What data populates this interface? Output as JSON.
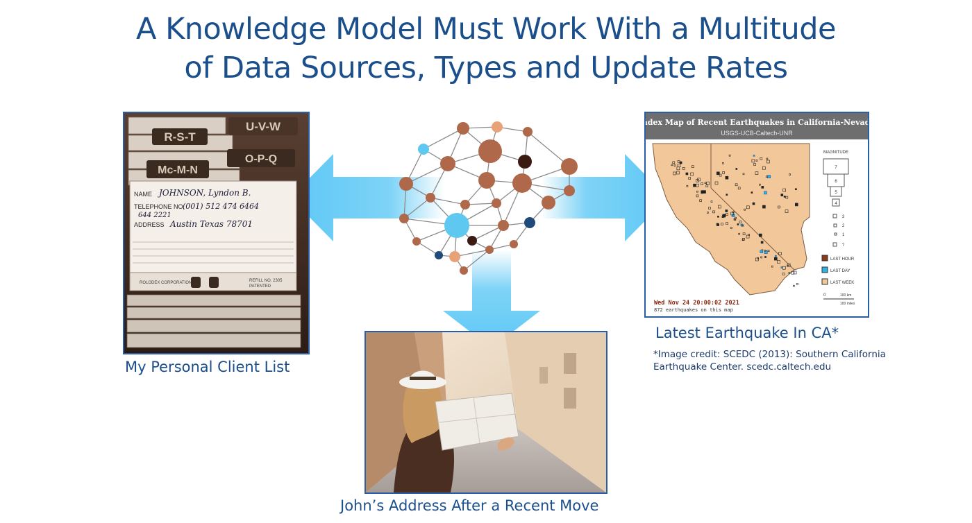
{
  "title": {
    "line1": "A Knowledge Model Must Work With a Multitude",
    "line2": "of Data Sources, Types and Update Rates"
  },
  "client_list": {
    "caption": "My Personal Client List",
    "tabs": [
      "R-S-T",
      "U-V-W",
      "Mc-M-N",
      "O-P-Q"
    ],
    "card": {
      "name_label": "NAME",
      "name_value": "JOHNSON, Lyndon B.",
      "phone_label": "TELEPHONE NO.",
      "phone_value": "(001) 512 474 6464",
      "phone_value2": "644 2221",
      "address_label": "ADDRESS",
      "address_value": "Austin Texas 78701",
      "footer_left": "ROLODEX CORPORATION",
      "footer_right": "REFILL NO. 2305",
      "footer_right2": "PATENTED"
    }
  },
  "address_move": {
    "caption": "John’s Address After a Recent Move"
  },
  "earthquake": {
    "caption": "Latest Earthquake In CA*",
    "credit_line1": "*Image credit: SCEDC (2013): Southern California",
    "credit_line2": "Earthquake Center. scedc.caltech.edu",
    "map": {
      "title": "Index Map of Recent Earthquakes in California-Nevada",
      "subtitle": "USGS-UCB-Caltech-UNR",
      "timestamp": "Wed Nov 24 20:00:02 2021",
      "count": "872 earthquakes on this map",
      "legend_magnitude_title": "MAGNITUDE",
      "magnitudes": [
        "7",
        "6",
        "5",
        "4",
        "3",
        "2",
        "1",
        "?"
      ],
      "legend_items": [
        "LAST HOUR",
        "LAST DAY",
        "LAST WEEK"
      ],
      "scale_labels": [
        "0",
        "100 km",
        "100 miles"
      ],
      "colors": {
        "last_hour": "#8b3a1a",
        "last_day": "#2fb3e6",
        "last_week": "#f2c79a"
      }
    }
  },
  "network_colors": {
    "brown": "#b0684a",
    "dark": "#3b1a12",
    "blue": "#5ec8f0",
    "navy": "#1f4a7a",
    "orange": "#e8a277"
  },
  "arrow_color": "#5ec8f5"
}
